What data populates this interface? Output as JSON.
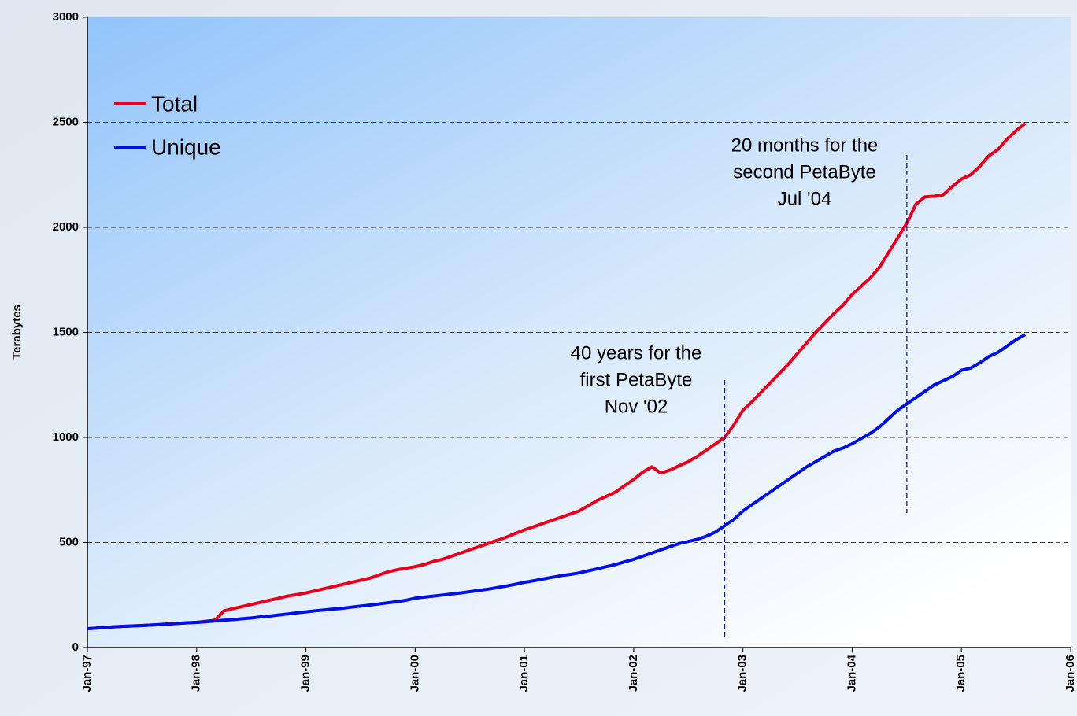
{
  "chart_data": {
    "type": "line",
    "y_label": "Terabytes",
    "x": [
      "1997-01",
      "1997-02",
      "1997-03",
      "1997-04",
      "1997-05",
      "1997-06",
      "1997-07",
      "1997-08",
      "1997-09",
      "1997-10",
      "1997-11",
      "1997-12",
      "1998-01",
      "1998-02",
      "1998-03",
      "1998-04",
      "1998-05",
      "1998-06",
      "1998-07",
      "1998-08",
      "1998-09",
      "1998-10",
      "1998-11",
      "1998-12",
      "1999-01",
      "1999-02",
      "1999-03",
      "1999-04",
      "1999-05",
      "1999-06",
      "1999-07",
      "1999-08",
      "1999-09",
      "1999-10",
      "1999-11",
      "1999-12",
      "2000-01",
      "2000-02",
      "2000-03",
      "2000-04",
      "2000-05",
      "2000-06",
      "2000-07",
      "2000-08",
      "2000-09",
      "2000-10",
      "2000-11",
      "2000-12",
      "2001-01",
      "2001-02",
      "2001-03",
      "2001-04",
      "2001-05",
      "2001-06",
      "2001-07",
      "2001-08",
      "2001-09",
      "2001-10",
      "2001-11",
      "2001-12",
      "2002-01",
      "2002-02",
      "2002-03",
      "2002-04",
      "2002-05",
      "2002-06",
      "2002-07",
      "2002-08",
      "2002-09",
      "2002-10",
      "2002-11",
      "2002-12",
      "2003-01",
      "2003-02",
      "2003-03",
      "2003-04",
      "2003-05",
      "2003-06",
      "2003-07",
      "2003-08",
      "2003-09",
      "2003-10",
      "2003-11",
      "2003-12",
      "2004-01",
      "2004-02",
      "2004-03",
      "2004-04",
      "2004-05",
      "2004-06",
      "2004-07",
      "2004-08",
      "2004-09",
      "2004-10",
      "2004-11",
      "2004-12",
      "2005-01",
      "2005-02",
      "2005-03",
      "2005-04",
      "2005-05",
      "2005-06",
      "2005-07",
      "2005-08"
    ],
    "series": [
      {
        "name": "Total",
        "color": "#e8001c",
        "values": [
          90,
          93,
          96,
          99,
          101,
          103,
          105,
          107,
          110,
          113,
          115,
          118,
          120,
          125,
          130,
          175,
          185,
          195,
          205,
          215,
          225,
          235,
          245,
          252,
          260,
          270,
          280,
          290,
          300,
          310,
          320,
          330,
          345,
          360,
          370,
          378,
          385,
          395,
          410,
          420,
          435,
          450,
          465,
          480,
          495,
          510,
          525,
          543,
          560,
          575,
          590,
          605,
          620,
          635,
          650,
          675,
          700,
          720,
          740,
          770,
          800,
          835,
          860,
          830,
          845,
          865,
          885,
          910,
          940,
          970,
          1000,
          1060,
          1130,
          1170,
          1215,
          1260,
          1305,
          1350,
          1400,
          1450,
          1500,
          1545,
          1590,
          1630,
          1680,
          1720,
          1760,
          1810,
          1880,
          1950,
          2020,
          2110,
          2145,
          2148,
          2155,
          2195,
          2230,
          2250,
          2290,
          2340,
          2370,
          2420,
          2460,
          2495
        ]
      },
      {
        "name": "Unique",
        "color": "#0010e0",
        "values": [
          90,
          93,
          96,
          99,
          101,
          103,
          105,
          107,
          109,
          112,
          115,
          118,
          120,
          123,
          127,
          130,
          133,
          137,
          141,
          146,
          150,
          155,
          160,
          165,
          170,
          175,
          179,
          183,
          187,
          192,
          197,
          202,
          207,
          213,
          218,
          225,
          235,
          240,
          245,
          250,
          255,
          260,
          266,
          272,
          278,
          285,
          293,
          301,
          310,
          318,
          326,
          334,
          342,
          348,
          355,
          365,
          375,
          385,
          395,
          408,
          420,
          435,
          450,
          465,
          480,
          495,
          505,
          515,
          530,
          550,
          580,
          610,
          650,
          680,
          710,
          740,
          770,
          800,
          830,
          860,
          885,
          910,
          935,
          950,
          970,
          995,
          1020,
          1050,
          1090,
          1130,
          1160,
          1190,
          1220,
          1250,
          1270,
          1290,
          1320,
          1330,
          1355,
          1385,
          1405,
          1435,
          1465,
          1490
        ]
      }
    ],
    "xlim": [
      "1997-01",
      "2006-01"
    ],
    "xticks": [
      {
        "value": "1997-01",
        "label": "Jan-97"
      },
      {
        "value": "1998-01",
        "label": "Jan-98"
      },
      {
        "value": "1999-01",
        "label": "Jan-99"
      },
      {
        "value": "2000-01",
        "label": "Jan-00"
      },
      {
        "value": "2001-01",
        "label": "Jan-01"
      },
      {
        "value": "2002-01",
        "label": "Jan-02"
      },
      {
        "value": "2003-01",
        "label": "Jan-03"
      },
      {
        "value": "2004-01",
        "label": "Jan-04"
      },
      {
        "value": "2005-01",
        "label": "Jan-05"
      },
      {
        "value": "2006-01",
        "label": "Jan-06"
      }
    ],
    "ylim": [
      0,
      3000
    ],
    "yticks": [
      0,
      500,
      1000,
      1500,
      2000,
      2500,
      3000
    ],
    "grid": true,
    "legend": "upper left",
    "annotations": [
      {
        "x": "2002-11",
        "lines": [
          "40 years for the",
          "first PetaByte",
          "Nov '02"
        ]
      },
      {
        "x": "2004-07",
        "lines": [
          "20 months for the",
          "second PetaByte",
          "Jul '04"
        ]
      }
    ]
  }
}
